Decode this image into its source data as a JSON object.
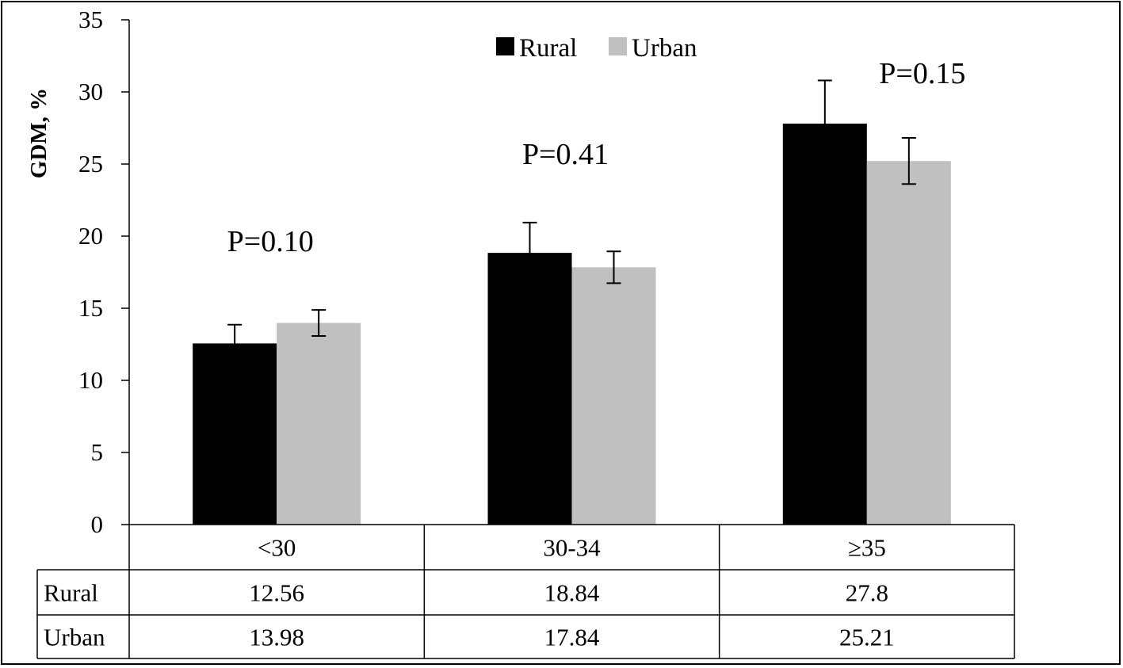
{
  "chart_data": {
    "type": "bar",
    "ylabel": "GDM, %",
    "ylim": [
      0,
      35
    ],
    "yticks": [
      0,
      5,
      10,
      15,
      20,
      25,
      30,
      35
    ],
    "categories": [
      "<30",
      "30-34",
      "≥35"
    ],
    "series": [
      {
        "name": "Rural",
        "color": "#000000",
        "values": [
          12.56,
          18.84,
          27.8
        ],
        "errors": [
          1.3,
          2.1,
          3.0
        ]
      },
      {
        "name": "Urban",
        "color": "#c0c0c0",
        "values": [
          13.98,
          17.84,
          25.21
        ],
        "errors": [
          0.9,
          1.1,
          1.6
        ]
      }
    ],
    "annotations": [
      "P=0.10",
      "P=0.41",
      "P=0.15"
    ],
    "legend_position": "top-center",
    "grid": false,
    "data_table": {
      "rows": [
        {
          "label": "Rural",
          "values": [
            "12.56",
            "18.84",
            "27.8"
          ]
        },
        {
          "label": "Urban",
          "values": [
            "13.98",
            "17.84",
            "25.21"
          ]
        }
      ]
    }
  }
}
